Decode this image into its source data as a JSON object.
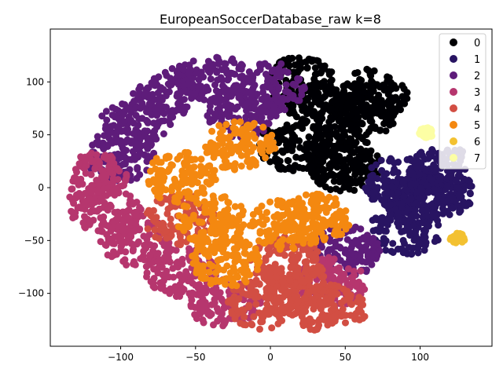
{
  "chart_data": {
    "type": "scatter",
    "title": "EuropeanSoccerDatabase_raw k=8",
    "xlabel": "",
    "ylabel": "",
    "xlim": [
      -147,
      148
    ],
    "ylim": [
      -150,
      150
    ],
    "x_ticks": [
      -100,
      -50,
      0,
      50,
      100
    ],
    "y_ticks": [
      -100,
      -50,
      0,
      50,
      100
    ],
    "x_tick_labels": [
      "−100",
      "−50",
      "0",
      "50",
      "100"
    ],
    "y_tick_labels": [
      "−100",
      "−50",
      "0",
      "50",
      "100"
    ],
    "grid": false,
    "legend_position": "top-right",
    "series": [
      {
        "name": "0",
        "color": "#000004",
        "centroids": [
          [
            35,
            75
          ],
          [
            60,
            70
          ],
          [
            20,
            100
          ],
          [
            45,
            30
          ],
          [
            15,
            40
          ],
          [
            70,
            90
          ],
          [
            50,
            20
          ]
        ]
      },
      {
        "name": "1",
        "color": "#281462",
        "centroids": [
          [
            100,
            -10
          ],
          [
            115,
            15
          ],
          [
            90,
            -40
          ],
          [
            115,
            -5
          ],
          [
            85,
            5
          ]
        ]
      },
      {
        "name": "2",
        "color": "#5e1c7a",
        "centroids": [
          [
            -70,
            90
          ],
          [
            -40,
            105
          ],
          [
            0,
            95
          ],
          [
            -100,
            30
          ],
          [
            -90,
            60
          ],
          [
            50,
            -60
          ],
          [
            -20,
            70
          ]
        ]
      },
      {
        "name": "3",
        "color": "#b6366e",
        "centroids": [
          [
            -90,
            -50
          ],
          [
            -110,
            -20
          ],
          [
            -60,
            -80
          ],
          [
            -120,
            10
          ],
          [
            40,
            -90
          ],
          [
            -30,
            -110
          ]
        ]
      },
      {
        "name": "4",
        "color": "#d24e43",
        "centroids": [
          [
            20,
            -95
          ],
          [
            -5,
            -110
          ],
          [
            40,
            -115
          ],
          [
            -60,
            -30
          ],
          [
            10,
            -70
          ]
        ]
      },
      {
        "name": "5",
        "color": "#f48810",
        "centroids": [
          [
            10,
            -35
          ],
          [
            -40,
            -30
          ],
          [
            30,
            -30
          ],
          [
            -20,
            40
          ],
          [
            -60,
            10
          ],
          [
            -30,
            -70
          ]
        ]
      },
      {
        "name": "6",
        "color": "#f3c131",
        "centroids": [
          [
            125,
            -48
          ]
        ]
      },
      {
        "name": "7",
        "color": "#fcfea4",
        "centroids": [
          [
            104,
            52
          ]
        ]
      }
    ]
  }
}
